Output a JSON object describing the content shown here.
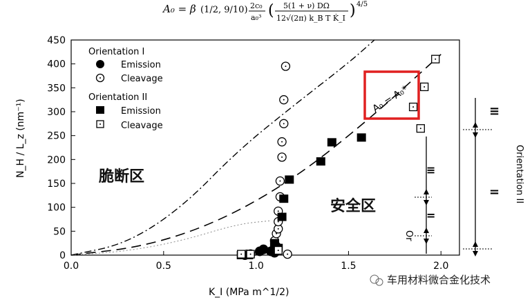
{
  "chart_data": {
    "type": "scatter",
    "formula": {
      "lhs": "A₀ = β",
      "frac1": "(1/2, 9/10)",
      "frac2_num": "2c₀",
      "frac2_den": "a₀³",
      "frac3_num": "5(1 + ν) DΩ",
      "frac3_den": "12√(2π) k_B T K̇_I",
      "exponent": "4/5"
    },
    "xlabel": "K_I (MPa m^1/2)",
    "ylabel": "N_H / L_z (nm⁻¹)",
    "xlim": [
      0.0,
      2.1
    ],
    "ylim": [
      0,
      450
    ],
    "x_ticks": [
      "0.0",
      "0.5",
      "1.0",
      "1.5",
      "2.0"
    ],
    "y_ticks": [
      "0",
      "50",
      "100",
      "150",
      "200",
      "250",
      "300",
      "350",
      "400",
      "450"
    ],
    "legend": {
      "placement": "top-left",
      "group1": "Orientation I",
      "group2": "Orientation II",
      "entries": [
        "Emission",
        "Cleavage",
        "Emission",
        "Cleavage"
      ]
    },
    "series": [
      {
        "name": "Emission",
        "group": "Orientation I",
        "marker": "filled-circle",
        "x": [
          0.94,
          0.97,
          1.02,
          1.04,
          1.08,
          1.1,
          1.11
        ],
        "y": [
          0,
          2,
          8,
          12,
          8,
          5,
          18
        ]
      },
      {
        "name": "Cleavage",
        "group": "Orientation I",
        "marker": "open-circle",
        "x": [
          0.95,
          1.1,
          1.11,
          1.12,
          1.12,
          1.12,
          1.13,
          1.13,
          1.14,
          1.14,
          1.15,
          1.15,
          1.16,
          1.17
        ],
        "y": [
          2,
          30,
          45,
          55,
          70,
          92,
          122,
          155,
          205,
          237,
          275,
          325,
          395,
          2
        ]
      },
      {
        "name": "Emission",
        "group": "Orientation II",
        "marker": "filled-square",
        "x": [
          0.92,
          0.96,
          1.1,
          1.12,
          1.14,
          1.15,
          1.18,
          1.35,
          1.41,
          1.57
        ],
        "y": [
          0,
          0,
          25,
          15,
          80,
          118,
          158,
          196,
          236,
          246
        ]
      },
      {
        "name": "Cleavage",
        "group": "Orientation II",
        "marker": "open-square",
        "x": [
          0.92,
          0.97,
          1.12,
          1.85,
          1.89,
          1.91,
          1.97
        ],
        "y": [
          2,
          2,
          10,
          310,
          265,
          352,
          410
        ]
      }
    ],
    "curves": [
      {
        "style": "dash-dot",
        "points": [
          [
            0,
            0
          ],
          [
            0.3,
            24
          ],
          [
            0.6,
            100
          ],
          [
            0.9,
            218
          ],
          [
            1.2,
            312
          ],
          [
            1.5,
            402
          ],
          [
            1.64,
            450
          ]
        ]
      },
      {
        "style": "dashed",
        "points": [
          [
            0,
            0
          ],
          [
            0.4,
            18
          ],
          [
            0.8,
            70
          ],
          [
            1.2,
            158
          ],
          [
            1.6,
            280
          ],
          [
            2.0,
            420
          ]
        ]
      },
      {
        "style": "dotted",
        "points": [
          [
            0,
            0
          ],
          [
            0.3,
            8
          ],
          [
            0.6,
            30
          ],
          [
            0.9,
            65
          ],
          [
            1.08,
            72
          ]
        ]
      }
    ],
    "annotations": {
      "boxed_label": "A₀ = A₀*",
      "brittle_zone": "脆断区",
      "safe_zone": "安全区",
      "or_label": "Or",
      "orientation_II_vertical": "Orientation II",
      "symbol_I": "Ι",
      "symbol_eq": "=",
      "symbol_triple": "≡"
    },
    "grid": false,
    "colors": {
      "axis": "#000000",
      "box": "#e02020",
      "marker": "#000000"
    }
  },
  "watermark": "车用材料微合金化技术"
}
